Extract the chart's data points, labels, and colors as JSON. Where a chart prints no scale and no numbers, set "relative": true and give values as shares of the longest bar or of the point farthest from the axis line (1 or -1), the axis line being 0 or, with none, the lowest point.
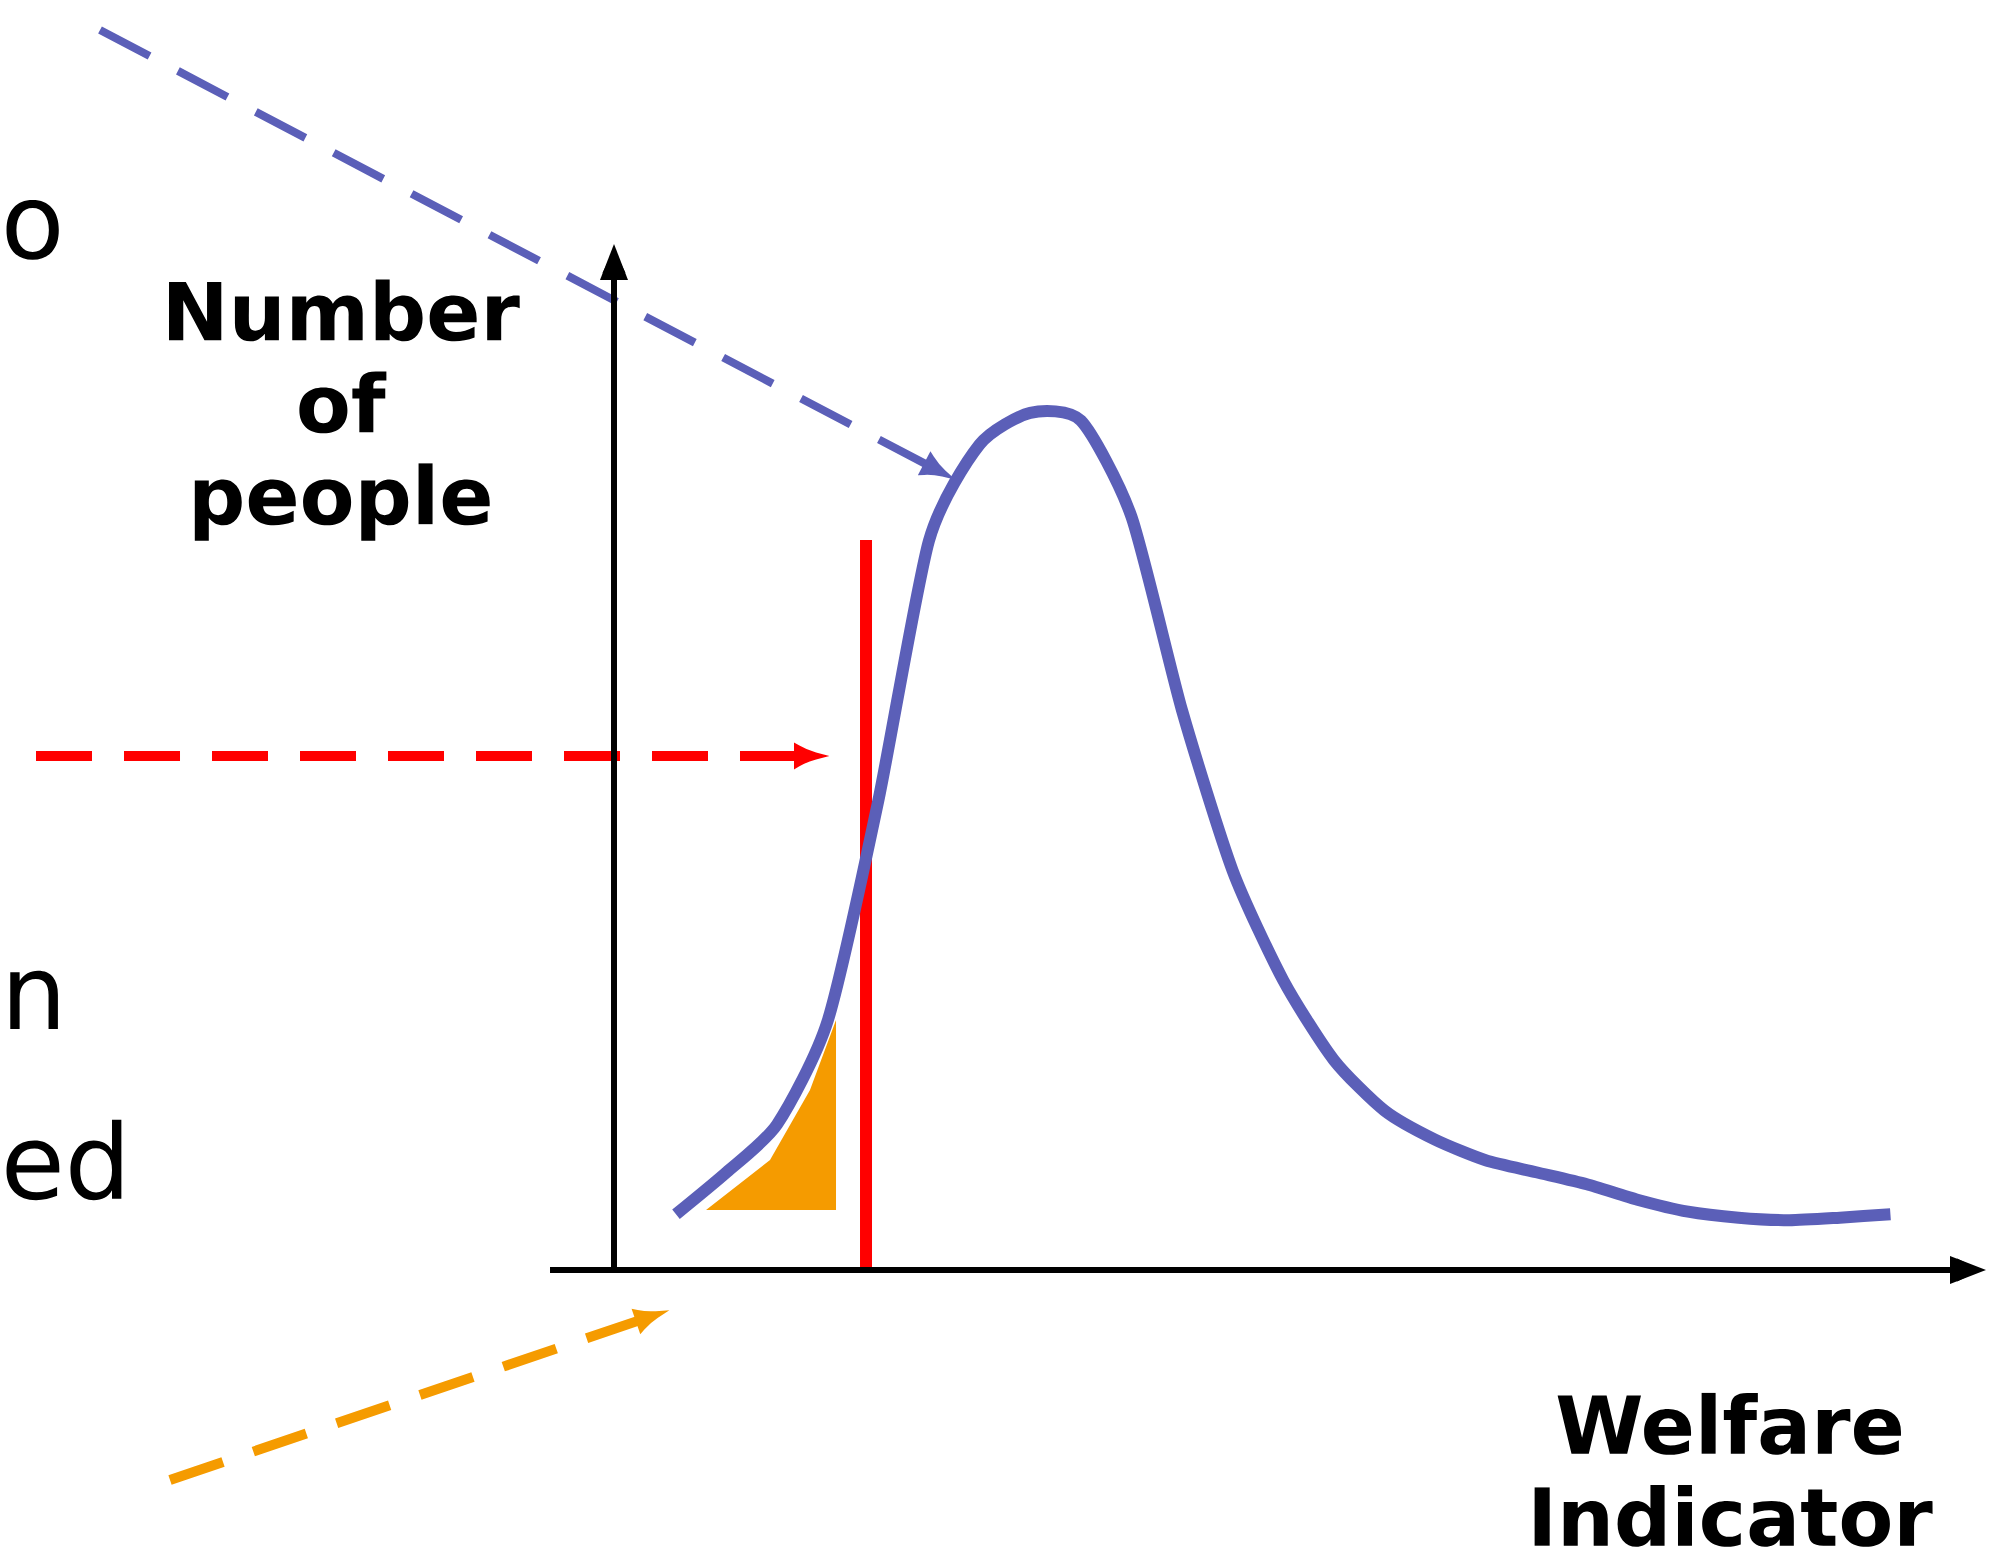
{
  "chart_data": {
    "type": "line",
    "relative": true,
    "xlabel": "Welfare Indicator",
    "ylabel": "Number of people",
    "categories": [
      null,
      null,
      null,
      null,
      null,
      null,
      null,
      null,
      null,
      null,
      null,
      null,
      null,
      null,
      null,
      null,
      null,
      null,
      null,
      null,
      null,
      null,
      null,
      null,
      null
    ],
    "series": [
      {
        "color": "#5b5fb8",
        "values": [
          0.065,
          0.114,
          0.17,
          0.291,
          0.548,
          0.851,
          0.963,
          1,
          0.991,
          0.879,
          0.653,
          0.466,
          0.338,
          0.245,
          0.186,
          0.152,
          0.128,
          0.114,
          0.1,
          0.082,
          0.068,
          0.061,
          0.058,
          0.061,
          0.065
        ]
      }
    ],
    "annotations": [
      "o",
      "n",
      "ed"
    ]
  }
}
